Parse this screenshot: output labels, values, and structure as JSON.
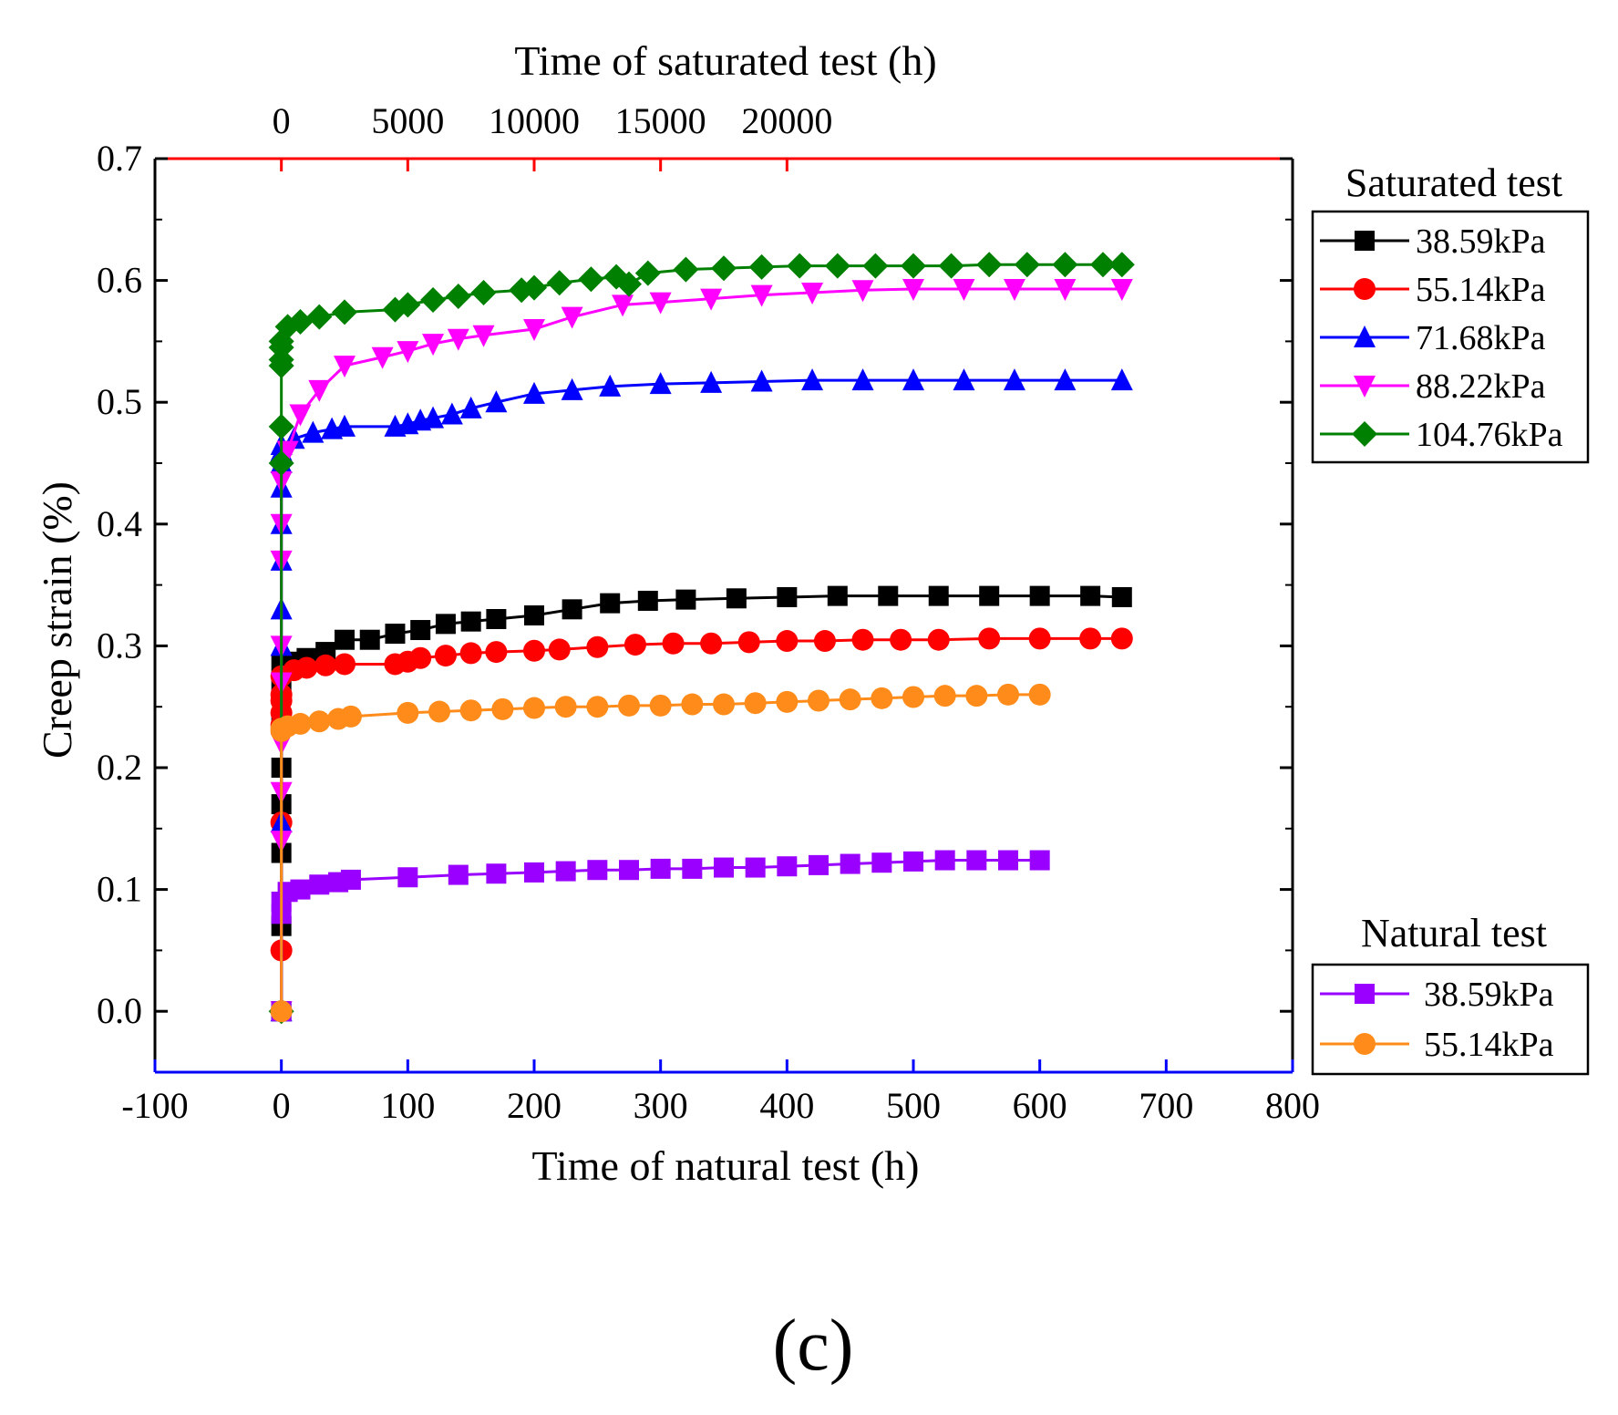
{
  "chart_data": {
    "type": "line",
    "panel_label": "(c)",
    "ylabel": "Creep strain (%)",
    "xlabel_bottom": "Time of natural test (h)",
    "xlabel_top": "Time of saturated test (h)",
    "ylim": [
      -0.05,
      0.7
    ],
    "xlim_bottom": [
      -100,
      800
    ],
    "xlim_top": [
      -5000,
      40000
    ],
    "yticks": [
      "0.0",
      "0.1",
      "0.2",
      "0.3",
      "0.4",
      "0.5",
      "0.6",
      "0.7"
    ],
    "yticks_values": [
      0.0,
      0.1,
      0.2,
      0.3,
      0.4,
      0.5,
      0.6,
      0.7
    ],
    "xticks_bottom": [
      "-100",
      "0",
      "100",
      "200",
      "300",
      "400",
      "500",
      "600",
      "700",
      "800"
    ],
    "xticks_bottom_values": [
      -100,
      0,
      100,
      200,
      300,
      400,
      500,
      600,
      700,
      800
    ],
    "xticks_top": [
      "0",
      "5000",
      "10000",
      "15000",
      "20000"
    ],
    "xticks_top_values": [
      0,
      5000,
      10000,
      15000,
      20000
    ],
    "colors": {
      "top_axis": "#ff0000",
      "bottom_axis": "#0000ff",
      "frame": "#000000"
    },
    "legend_saturated": {
      "title": "Saturated test",
      "entries": [
        "38.59kPa",
        " 55.14kPa",
        "71.68kPa",
        "88.22kPa",
        "104.76kPa"
      ]
    },
    "legend_natural": {
      "title": "Natural test",
      "entries": [
        "38.59kPa",
        "55.14kPa"
      ]
    },
    "series": [
      {
        "name": "Saturated 38.59kPa",
        "group": "saturated",
        "color": "#000000",
        "marker": "square",
        "x": [
          0,
          0,
          0,
          0,
          0,
          0,
          0,
          0,
          10,
          20,
          35,
          50,
          70,
          90,
          110,
          130,
          150,
          170,
          200,
          230,
          260,
          290,
          320,
          360,
          400,
          440,
          480,
          520,
          560,
          600,
          640,
          665
        ],
        "y": [
          0,
          0.07,
          0.13,
          0.17,
          0.2,
          0.24,
          0.27,
          0.285,
          0.287,
          0.29,
          0.295,
          0.305,
          0.305,
          0.31,
          0.313,
          0.318,
          0.32,
          0.322,
          0.325,
          0.33,
          0.335,
          0.337,
          0.338,
          0.339,
          0.34,
          0.341,
          0.341,
          0.341,
          0.341,
          0.341,
          0.341,
          0.34
        ]
      },
      {
        "name": "Saturated 55.14kPa",
        "group": "saturated",
        "color": "#ff0000",
        "marker": "circle",
        "x": [
          0,
          0,
          0,
          0,
          0,
          0,
          0,
          0,
          10,
          20,
          35,
          50,
          90,
          100,
          110,
          130,
          150,
          170,
          200,
          220,
          250,
          280,
          310,
          340,
          370,
          400,
          430,
          460,
          490,
          520,
          560,
          600,
          640,
          665
        ],
        "y": [
          0,
          0.05,
          0.155,
          0.235,
          0.245,
          0.255,
          0.26,
          0.275,
          0.28,
          0.282,
          0.284,
          0.285,
          0.285,
          0.287,
          0.29,
          0.292,
          0.294,
          0.295,
          0.296,
          0.297,
          0.299,
          0.301,
          0.302,
          0.302,
          0.303,
          0.304,
          0.304,
          0.305,
          0.305,
          0.305,
          0.306,
          0.306,
          0.306,
          0.306
        ]
      },
      {
        "name": "Saturated 71.68kPa",
        "group": "saturated",
        "color": "#0000ff",
        "marker": "triangle-up",
        "x": [
          0,
          0,
          0,
          0,
          0,
          0,
          0,
          0,
          0,
          0,
          10,
          25,
          40,
          50,
          90,
          100,
          110,
          120,
          135,
          150,
          170,
          200,
          230,
          260,
          300,
          340,
          380,
          420,
          460,
          500,
          540,
          580,
          620,
          665
        ],
        "y": [
          0,
          0.155,
          0.3,
          0.33,
          0.37,
          0.4,
          0.43,
          0.45,
          0.46,
          0.465,
          0.47,
          0.475,
          0.478,
          0.48,
          0.48,
          0.482,
          0.485,
          0.487,
          0.49,
          0.495,
          0.5,
          0.507,
          0.51,
          0.513,
          0.515,
          0.516,
          0.517,
          0.518,
          0.518,
          0.518,
          0.518,
          0.518,
          0.518,
          0.518
        ]
      },
      {
        "name": "Saturated 88.22kPa",
        "group": "saturated",
        "color": "#ff00ff",
        "marker": "triangle-down",
        "x": [
          0,
          0,
          0,
          0,
          0,
          0,
          0,
          0,
          0,
          5,
          15,
          30,
          50,
          80,
          100,
          120,
          140,
          160,
          200,
          230,
          270,
          300,
          340,
          380,
          420,
          460,
          500,
          540,
          580,
          620,
          665
        ],
        "y": [
          0,
          0.14,
          0.18,
          0.22,
          0.27,
          0.3,
          0.37,
          0.4,
          0.435,
          0.46,
          0.49,
          0.51,
          0.53,
          0.537,
          0.542,
          0.548,
          0.552,
          0.555,
          0.56,
          0.57,
          0.58,
          0.582,
          0.585,
          0.588,
          0.59,
          0.592,
          0.593,
          0.593,
          0.593,
          0.593,
          0.593
        ]
      },
      {
        "name": "Saturated 104.76kPa",
        "group": "saturated",
        "color": "#008000",
        "marker": "diamond",
        "x": [
          0,
          0,
          0,
          0,
          0,
          0,
          0,
          5,
          15,
          30,
          50,
          90,
          100,
          120,
          140,
          160,
          190,
          200,
          220,
          245,
          265,
          275,
          290,
          320,
          350,
          380,
          410,
          440,
          470,
          500,
          530,
          560,
          590,
          620,
          650,
          665
        ],
        "y": [
          0,
          0.45,
          0.48,
          0.53,
          0.535,
          0.545,
          0.55,
          0.562,
          0.566,
          0.57,
          0.574,
          0.576,
          0.58,
          0.584,
          0.587,
          0.59,
          0.592,
          0.594,
          0.598,
          0.601,
          0.603,
          0.597,
          0.606,
          0.609,
          0.61,
          0.611,
          0.612,
          0.612,
          0.612,
          0.612,
          0.612,
          0.613,
          0.613,
          0.613,
          0.613,
          0.613
        ]
      },
      {
        "name": "Natural 38.59kPa",
        "group": "natural",
        "color": "#9900ff",
        "marker": "square",
        "x": [
          0,
          0,
          0,
          5,
          15,
          30,
          45,
          55,
          100,
          140,
          170,
          200,
          225,
          250,
          275,
          300,
          325,
          350,
          375,
          400,
          425,
          450,
          475,
          500,
          525,
          550,
          575,
          600
        ],
        "y": [
          0,
          0.08,
          0.09,
          0.098,
          0.1,
          0.104,
          0.106,
          0.108,
          0.11,
          0.112,
          0.113,
          0.114,
          0.115,
          0.116,
          0.116,
          0.117,
          0.117,
          0.118,
          0.118,
          0.119,
          0.12,
          0.121,
          0.122,
          0.123,
          0.124,
          0.124,
          0.124,
          0.124
        ]
      },
      {
        "name": "Natural 55.14kPa",
        "group": "natural",
        "color": "#ff8c1a",
        "marker": "circle",
        "x": [
          0,
          0,
          0,
          5,
          15,
          30,
          45,
          55,
          100,
          125,
          150,
          175,
          200,
          225,
          250,
          275,
          300,
          325,
          350,
          375,
          400,
          425,
          450,
          475,
          500,
          525,
          550,
          575,
          600
        ],
        "y": [
          0,
          0.23,
          0.232,
          0.234,
          0.236,
          0.238,
          0.24,
          0.242,
          0.245,
          0.246,
          0.247,
          0.248,
          0.249,
          0.25,
          0.25,
          0.251,
          0.251,
          0.252,
          0.252,
          0.253,
          0.254,
          0.255,
          0.256,
          0.257,
          0.258,
          0.259,
          0.259,
          0.26,
          0.26
        ]
      }
    ]
  }
}
